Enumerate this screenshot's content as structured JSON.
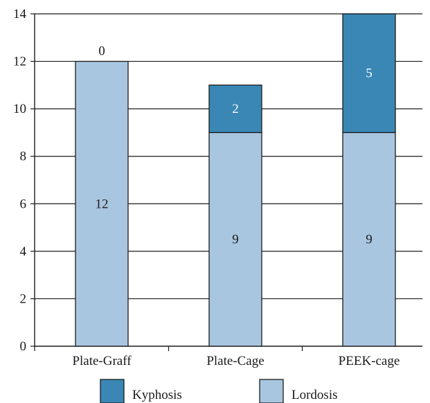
{
  "chart_data": {
    "type": "bar",
    "stacked": true,
    "categories": [
      "Plate-Graff",
      "Plate-Cage",
      "PEEK-cage"
    ],
    "series": [
      {
        "name": "Lordosis",
        "values": [
          12,
          9,
          9
        ],
        "color": "#a9c6e0"
      },
      {
        "name": "Kyphosis",
        "values": [
          0,
          2,
          5
        ],
        "color": "#3a87b5"
      }
    ],
    "title": "",
    "xlabel": "",
    "ylabel": "",
    "ylim": [
      0,
      14
    ],
    "yticks": [
      0,
      2,
      4,
      6,
      8,
      10,
      12,
      14
    ],
    "grid": "horizontal",
    "legend": {
      "placement": "bottom",
      "entries": [
        "Kyphosis",
        "Lordosis"
      ]
    }
  }
}
